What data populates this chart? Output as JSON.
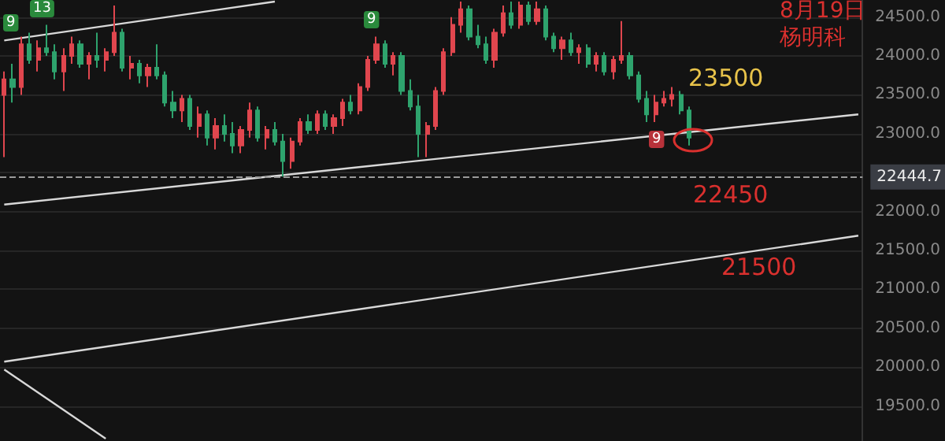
{
  "chart_data": {
    "type": "candlestick",
    "categories": [
      null,
      null,
      null,
      null,
      null,
      null,
      null,
      null,
      null,
      null,
      null,
      null,
      null,
      null,
      null,
      null,
      null,
      null,
      null,
      null,
      null,
      null,
      null,
      null,
      null,
      null,
      null,
      null,
      null,
      null,
      null,
      null,
      null,
      null,
      null,
      null,
      null,
      null,
      null,
      null,
      null,
      null,
      null,
      null,
      null,
      null,
      null,
      null,
      null,
      null,
      null,
      null,
      null,
      null,
      null,
      null,
      null,
      null,
      null,
      null,
      null,
      null,
      null,
      null,
      null,
      null,
      null,
      null,
      null,
      null,
      null,
      null,
      null,
      null,
      null,
      null,
      null,
      null,
      null,
      null,
      null,
      null,
      null,
      null,
      null,
      null,
      null,
      null,
      null,
      null,
      null,
      null,
      null,
      null,
      null,
      null,
      null,
      null,
      null,
      null,
      null,
      null
    ],
    "ohlc": [
      [
        23500,
        23800,
        22700,
        23700
      ],
      [
        23700,
        23900,
        23400,
        23600
      ],
      [
        23600,
        24250,
        23500,
        24150
      ],
      [
        24150,
        24300,
        23900,
        23950
      ],
      [
        23950,
        24200,
        23800,
        24100
      ],
      [
        24100,
        24400,
        24000,
        24050
      ],
      [
        24050,
        24150,
        23700,
        23800
      ],
      [
        23800,
        24100,
        23550,
        24000
      ],
      [
        24000,
        24250,
        23900,
        24150
      ],
      [
        24150,
        24200,
        23850,
        23900
      ],
      [
        23900,
        24050,
        23700,
        24000
      ],
      [
        24000,
        24300,
        23850,
        23950
      ],
      [
        23950,
        24100,
        23800,
        24050
      ],
      [
        24050,
        24650,
        24000,
        24300
      ],
      [
        24300,
        24350,
        23800,
        23850
      ],
      [
        23850,
        24000,
        23700,
        23900
      ],
      [
        23900,
        23950,
        23650,
        23750
      ],
      [
        23750,
        23900,
        23600,
        23850
      ],
      [
        23850,
        24150,
        23700,
        23750
      ],
      [
        23750,
        23800,
        23350,
        23400
      ],
      [
        23400,
        23550,
        23200,
        23300
      ],
      [
        23300,
        23500,
        23150,
        23450
      ],
      [
        23450,
        23500,
        23050,
        23100
      ],
      [
        23100,
        23350,
        22950,
        23250
      ],
      [
        23250,
        23300,
        22850,
        22950
      ],
      [
        22950,
        23200,
        22800,
        23100
      ],
      [
        23100,
        23250,
        22900,
        23000
      ],
      [
        23000,
        23150,
        22750,
        22850
      ],
      [
        22850,
        23100,
        22750,
        23050
      ],
      [
        23050,
        23400,
        22950,
        23300
      ],
      [
        23300,
        23350,
        22900,
        22950
      ],
      [
        22950,
        23100,
        22800,
        23050
      ],
      [
        23050,
        23150,
        22850,
        22900
      ],
      [
        22900,
        23000,
        22450,
        22650
      ],
      [
        22650,
        22950,
        22550,
        22900
      ],
      [
        22900,
        23200,
        22850,
        23150
      ],
      [
        23150,
        23250,
        23000,
        23050
      ],
      [
        23050,
        23300,
        23000,
        23250
      ],
      [
        23250,
        23300,
        23050,
        23100
      ],
      [
        23100,
        23250,
        23000,
        23200
      ],
      [
        23200,
        23450,
        23100,
        23400
      ],
      [
        23400,
        23500,
        23250,
        23300
      ],
      [
        23300,
        23650,
        23250,
        23600
      ],
      [
        23600,
        24000,
        23550,
        23950
      ],
      [
        23950,
        24250,
        23900,
        24150
      ],
      [
        24150,
        24200,
        23850,
        23900
      ],
      [
        23900,
        24050,
        23750,
        24000
      ],
      [
        24000,
        24050,
        23500,
        23550
      ],
      [
        23550,
        23700,
        23300,
        23350
      ],
      [
        23350,
        23500,
        22700,
        23000
      ],
      [
        23000,
        23150,
        22700,
        23100
      ],
      [
        23100,
        23600,
        23050,
        23550
      ],
      [
        23550,
        24100,
        23500,
        24050
      ],
      [
        24050,
        24500,
        24000,
        24400
      ],
      [
        24400,
        24700,
        24300,
        24600
      ],
      [
        24600,
        24650,
        24200,
        24250
      ],
      [
        24250,
        24400,
        24100,
        24150
      ],
      [
        24150,
        24250,
        23900,
        23950
      ],
      [
        23950,
        24350,
        23850,
        24300
      ],
      [
        24300,
        24650,
        24250,
        24550
      ],
      [
        24550,
        24700,
        24350,
        24400
      ],
      [
        24400,
        24700,
        24350,
        24650
      ],
      [
        24650,
        24700,
        24400,
        24450
      ],
      [
        24450,
        24700,
        24400,
        24600
      ],
      [
        24600,
        24650,
        24200,
        24250
      ],
      [
        24250,
        24300,
        24050,
        24100
      ],
      [
        24100,
        24250,
        23950,
        24200
      ],
      [
        24200,
        24300,
        24000,
        24050
      ],
      [
        24050,
        24150,
        23900,
        24100
      ],
      [
        24100,
        24150,
        23850,
        23900
      ],
      [
        23900,
        24050,
        23800,
        24000
      ],
      [
        24000,
        24050,
        23750,
        23800
      ],
      [
        23800,
        24000,
        23700,
        23950
      ],
      [
        23950,
        24450,
        23900,
        24000
      ],
      [
        24000,
        24050,
        23700,
        23750
      ],
      [
        23750,
        23800,
        23400,
        23450
      ],
      [
        23450,
        23550,
        23150,
        23250
      ],
      [
        23250,
        23500,
        23150,
        23400
      ],
      [
        23400,
        23550,
        23350,
        23450
      ],
      [
        23450,
        23600,
        23350,
        23500
      ],
      [
        23500,
        23550,
        23250,
        23300
      ],
      [
        23300,
        23350,
        22850,
        22950
      ],
      null,
      null,
      null,
      null,
      null,
      null,
      null,
      null,
      null,
      null,
      null,
      null,
      null,
      null,
      null,
      null,
      null,
      null,
      null,
      null
    ],
    "series": [
      {
        "type": "line",
        "color": "#d8d8d8",
        "values": [
          24200,
          null,
          null,
          null,
          null,
          null,
          null,
          null,
          null,
          null,
          null,
          null,
          null,
          null,
          null,
          null,
          null,
          null,
          null,
          null,
          null,
          null,
          null,
          null,
          null,
          null,
          null,
          null,
          null,
          null,
          null,
          null,
          24700,
          null,
          null,
          null,
          null,
          null,
          null,
          null,
          null,
          null,
          null,
          null,
          null,
          null,
          null,
          null,
          null,
          null,
          null,
          null,
          null,
          null,
          null,
          null,
          null,
          null,
          null,
          null,
          null,
          null,
          null,
          null,
          null,
          null,
          null,
          null,
          null,
          null,
          null,
          null,
          null,
          null,
          null,
          null,
          null,
          null,
          null,
          null,
          null,
          null,
          null,
          null,
          null,
          null,
          null,
          null,
          null,
          null,
          null,
          null,
          null,
          null,
          null,
          null,
          null,
          null,
          null,
          null,
          null,
          null
        ]
      },
      {
        "type": "line",
        "color": "#d8d8d8",
        "values": [
          22090,
          null,
          null,
          null,
          null,
          null,
          null,
          null,
          null,
          null,
          null,
          null,
          null,
          null,
          null,
          null,
          null,
          null,
          null,
          null,
          null,
          null,
          null,
          null,
          null,
          null,
          null,
          null,
          null,
          null,
          null,
          null,
          null,
          null,
          null,
          null,
          null,
          null,
          null,
          null,
          null,
          null,
          null,
          null,
          null,
          null,
          null,
          null,
          null,
          null,
          null,
          null,
          null,
          null,
          null,
          null,
          null,
          null,
          null,
          null,
          null,
          null,
          null,
          null,
          null,
          null,
          null,
          null,
          null,
          null,
          null,
          null,
          null,
          null,
          null,
          null,
          null,
          null,
          null,
          null,
          null,
          null,
          null,
          null,
          null,
          null,
          null,
          null,
          null,
          null,
          null,
          null,
          null,
          null,
          null,
          null,
          null,
          null,
          null,
          null,
          null,
          23250
        ]
      },
      {
        "type": "line",
        "color": "#d8d8d8",
        "values": [
          20070,
          null,
          null,
          null,
          null,
          null,
          null,
          null,
          null,
          null,
          null,
          null,
          null,
          null,
          null,
          null,
          null,
          null,
          null,
          null,
          null,
          null,
          null,
          null,
          null,
          null,
          null,
          null,
          null,
          null,
          null,
          null,
          null,
          null,
          null,
          null,
          null,
          null,
          null,
          null,
          null,
          null,
          null,
          null,
          null,
          null,
          null,
          null,
          null,
          null,
          null,
          null,
          null,
          null,
          null,
          null,
          null,
          null,
          null,
          null,
          null,
          null,
          null,
          null,
          null,
          null,
          null,
          null,
          null,
          null,
          null,
          null,
          null,
          null,
          null,
          null,
          null,
          null,
          null,
          null,
          null,
          null,
          null,
          null,
          null,
          null,
          null,
          null,
          null,
          null,
          null,
          null,
          null,
          null,
          null,
          null,
          null,
          null,
          null,
          null,
          null,
          21690
        ]
      },
      {
        "type": "line",
        "color": "#d8d8d8",
        "values": [
          19970,
          null,
          null,
          null,
          null,
          null,
          null,
          null,
          null,
          null,
          null,
          null,
          19080,
          null,
          null,
          null,
          null,
          null,
          null,
          null,
          null,
          null,
          null,
          null,
          null,
          null,
          null,
          null,
          null,
          null,
          null,
          null,
          null,
          null,
          null,
          null,
          null,
          null,
          null,
          null,
          null,
          null,
          null,
          null,
          null,
          null,
          null,
          null,
          null,
          null,
          null,
          null,
          null,
          null,
          null,
          null,
          null,
          null,
          null,
          null,
          null,
          null,
          null,
          null,
          null,
          null,
          null,
          null,
          null,
          null,
          null,
          null,
          null,
          null,
          null,
          null,
          null,
          null,
          null,
          null,
          null,
          null,
          null,
          null,
          null,
          null,
          null,
          null,
          null,
          null,
          null,
          null,
          null,
          null,
          null,
          null,
          null,
          null,
          null,
          null,
          null,
          null
        ]
      }
    ],
    "ylim": [
      19050,
      24720
    ],
    "yticks": [
      {
        "value": 19500,
        "label": "19500.0"
      },
      {
        "value": 20000,
        "label": "20000.0"
      },
      {
        "value": 20500,
        "label": "20500.0"
      },
      {
        "value": 21000,
        "label": "21000.0"
      },
      {
        "value": 21500,
        "label": "21500.0"
      },
      {
        "value": 22000,
        "label": "22000.0"
      },
      {
        "value": 22500,
        "label": null
      },
      {
        "value": 23000,
        "label": "23000.0"
      },
      {
        "value": 23500,
        "label": "23500.0"
      },
      {
        "value": 24000,
        "label": "24000.0"
      },
      {
        "value": 24500,
        "label": "24500.0"
      }
    ],
    "ref_lines": [
      {
        "axis": "y",
        "value": 22444.7,
        "label": "22444.7",
        "color": "#9a9a9a",
        "line_style": "dashed"
      }
    ],
    "annotations": [
      "23500",
      "22450",
      "21500",
      "8月19日",
      "杨明科",
      "9",
      "13",
      "9",
      "9"
    ],
    "tick_labels": "y",
    "grid": "y"
  }
}
